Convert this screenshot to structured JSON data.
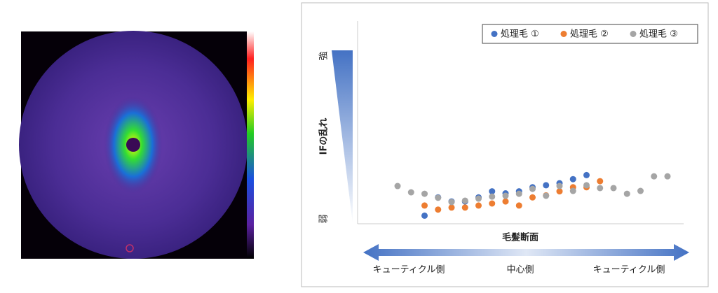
{
  "chart_data": {
    "type": "scatter",
    "ylabel": "IFの乱れ",
    "y_high_label": "強",
    "y_low_label": "弱",
    "xlabel": "毛髪断面",
    "direction_labels": [
      "キューティクル側",
      "中心側",
      "キューティクル側"
    ],
    "categories": [
      null,
      null,
      null,
      null,
      null,
      null,
      null,
      null,
      null,
      null,
      null,
      null,
      null,
      null,
      null,
      null,
      null,
      null,
      null,
      null,
      null
    ],
    "ylim": [
      0,
      100
    ],
    "series": [
      {
        "name": "処理毛 ①",
        "color": "#4472c4",
        "values": [
          null,
          null,
          4,
          13,
          11,
          11,
          13,
          16,
          15,
          16,
          18,
          19,
          20,
          22,
          24,
          null,
          null,
          null,
          null,
          null,
          null
        ]
      },
      {
        "name": "処理毛 ②",
        "color": "#ed7d31",
        "values": [
          null,
          null,
          9,
          7,
          8,
          8,
          9,
          10,
          11,
          9,
          13,
          14,
          16,
          18,
          18,
          21,
          null,
          null,
          null,
          null,
          null
        ]
      },
      {
        "name": "処理毛 ③",
        "color": "#a5a5a5",
        "values": [
          18.6,
          15.5,
          14.8,
          12.8,
          10.7,
          11.4,
          12.4,
          13.4,
          13.8,
          14.8,
          17.2,
          13.8,
          18.6,
          16.2,
          19,
          17.6,
          17.6,
          14.8,
          16.2,
          23.4,
          23.4
        ]
      }
    ]
  }
}
